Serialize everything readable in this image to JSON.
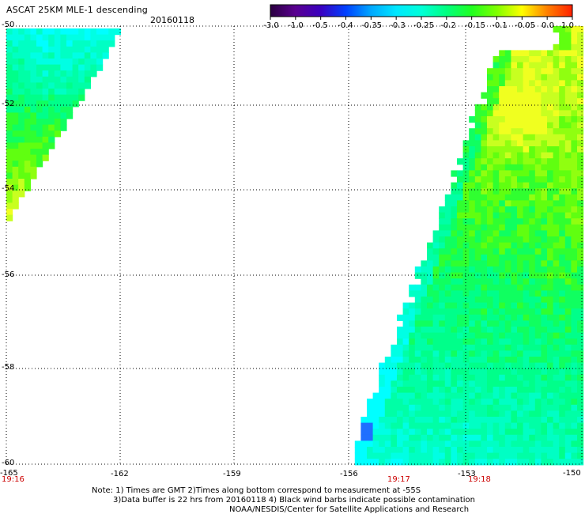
{
  "header": {
    "title": "ASCAT 25KM MLE-1 descending",
    "date": "20160118"
  },
  "colorbar": {
    "labels": [
      "-3.0",
      "-1.0",
      "-0.5",
      "-0.4",
      "-0.35",
      "-0.3",
      "-0.25",
      "-0.2",
      "-0.15",
      "-0.1",
      "-0.05",
      "0.0",
      "1.0"
    ],
    "colors": [
      "#2a0040",
      "#5a0090",
      "#3a00c0",
      "#0040ff",
      "#00a8ff",
      "#00e8ff",
      "#00ffd8",
      "#00ff80",
      "#20ff20",
      "#80ff00",
      "#ffff00",
      "#ff8000",
      "#ff2000"
    ]
  },
  "map": {
    "lat_labels": [
      "-50",
      "-52",
      "-54",
      "-56",
      "-58",
      "-60"
    ],
    "lon_labels": [
      "-165",
      "-162",
      "-159",
      "-156",
      "-153",
      "-150"
    ],
    "time_labels": [
      "19:16",
      "19:17",
      "19:18"
    ]
  },
  "notes": {
    "line1": "Note: 1) Times are GMT 2)Times along bottom correspond to measurement at -55S",
    "line2": "3)Data buffer is 22 hrs from 20160118 4) Black wind barbs indicate possible contamination",
    "line3": "NOAA/NESDIS/Center for Satellite Applications and Research"
  }
}
